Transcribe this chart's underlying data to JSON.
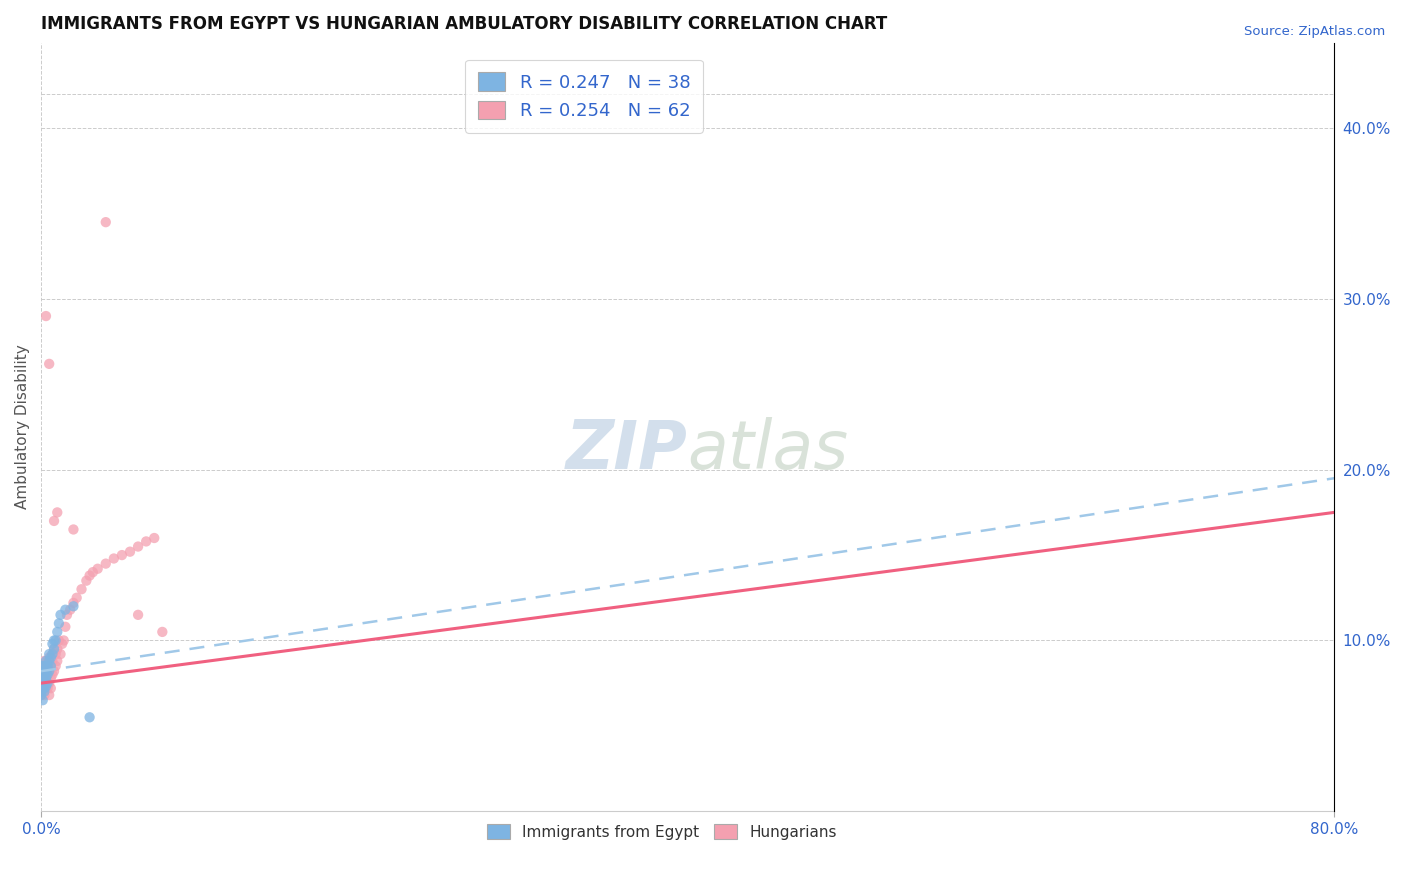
{
  "title": "IMMIGRANTS FROM EGYPT VS HUNGARIAN AMBULATORY DISABILITY CORRELATION CHART",
  "source": "Source: ZipAtlas.com",
  "ylabel": "Ambulatory Disability",
  "right_yticks": [
    "40.0%",
    "30.0%",
    "20.0%",
    "10.0%"
  ],
  "right_ytick_vals": [
    0.4,
    0.3,
    0.2,
    0.1
  ],
  "legend1_label": "R = 0.247   N = 38",
  "legend2_label": "R = 0.254   N = 62",
  "legend_bottom_label1": "Immigrants from Egypt",
  "legend_bottom_label2": "Hungarians",
  "blue_color": "#7EB4E2",
  "pink_color": "#F4A0B0",
  "trendline_blue_color": "#A0C8E8",
  "trendline_pink_color": "#F06080",
  "egypt_points_x": [
    0.0,
    0.0,
    0.001,
    0.001,
    0.001,
    0.001,
    0.001,
    0.001,
    0.001,
    0.002,
    0.002,
    0.002,
    0.002,
    0.002,
    0.002,
    0.003,
    0.003,
    0.003,
    0.003,
    0.004,
    0.004,
    0.004,
    0.005,
    0.005,
    0.005,
    0.006,
    0.006,
    0.007,
    0.007,
    0.008,
    0.008,
    0.009,
    0.01,
    0.011,
    0.012,
    0.015,
    0.02,
    0.03
  ],
  "egypt_points_y": [
    0.068,
    0.07,
    0.072,
    0.075,
    0.078,
    0.08,
    0.082,
    0.065,
    0.085,
    0.07,
    0.075,
    0.08,
    0.085,
    0.078,
    0.072,
    0.073,
    0.078,
    0.082,
    0.088,
    0.075,
    0.08,
    0.085,
    0.082,
    0.088,
    0.092,
    0.085,
    0.09,
    0.092,
    0.098,
    0.095,
    0.1,
    0.1,
    0.105,
    0.11,
    0.115,
    0.118,
    0.12,
    0.055
  ],
  "hungarian_points_x": [
    0.0,
    0.0,
    0.001,
    0.001,
    0.001,
    0.001,
    0.001,
    0.002,
    0.002,
    0.002,
    0.002,
    0.003,
    0.003,
    0.003,
    0.004,
    0.004,
    0.004,
    0.005,
    0.005,
    0.005,
    0.005,
    0.006,
    0.006,
    0.006,
    0.007,
    0.007,
    0.007,
    0.008,
    0.008,
    0.009,
    0.009,
    0.01,
    0.01,
    0.011,
    0.012,
    0.013,
    0.014,
    0.015,
    0.016,
    0.018,
    0.02,
    0.022,
    0.025,
    0.028,
    0.03,
    0.032,
    0.035,
    0.04,
    0.045,
    0.05,
    0.055,
    0.06,
    0.065,
    0.07,
    0.075,
    0.02,
    0.005,
    0.008,
    0.01,
    0.003,
    0.06,
    0.04
  ],
  "hungarian_points_y": [
    0.068,
    0.072,
    0.07,
    0.075,
    0.08,
    0.085,
    0.072,
    0.068,
    0.075,
    0.082,
    0.088,
    0.078,
    0.085,
    0.072,
    0.072,
    0.08,
    0.088,
    0.075,
    0.082,
    0.09,
    0.068,
    0.078,
    0.085,
    0.072,
    0.08,
    0.088,
    0.092,
    0.082,
    0.095,
    0.085,
    0.092,
    0.088,
    0.095,
    0.1,
    0.092,
    0.098,
    0.1,
    0.108,
    0.115,
    0.118,
    0.122,
    0.125,
    0.13,
    0.135,
    0.138,
    0.14,
    0.142,
    0.145,
    0.148,
    0.15,
    0.152,
    0.155,
    0.158,
    0.16,
    0.105,
    0.165,
    0.262,
    0.17,
    0.175,
    0.29,
    0.115,
    0.345
  ],
  "xlim": [
    0.0,
    0.8
  ],
  "ylim": [
    0.0,
    0.45
  ],
  "background_color": "#FFFFFF",
  "plot_bg_color": "#FFFFFF",
  "trendline_blue_start_y": 0.082,
  "trendline_blue_end_y": 0.195,
  "trendline_pink_start_y": 0.075,
  "trendline_pink_end_y": 0.175,
  "egypt_trendline_x_end": 0.8,
  "hungarian_trendline_x_end": 0.8
}
